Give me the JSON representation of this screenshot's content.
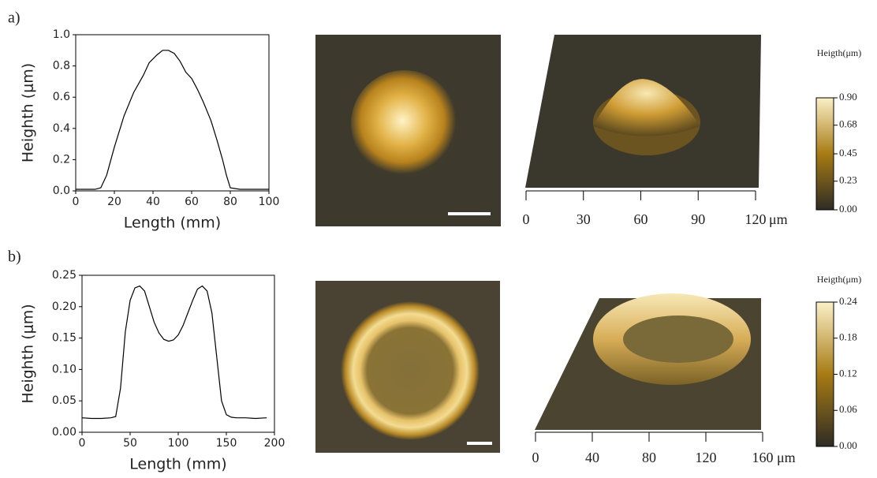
{
  "chart_data": [
    {
      "type": "line",
      "panel_label": "a)",
      "xlabel": "Length (mm)",
      "ylabel": "Heighth (μm)",
      "x": [
        0,
        5,
        10,
        13,
        16,
        20,
        25,
        30,
        35,
        38,
        42,
        45,
        48,
        51,
        54,
        57,
        60,
        63,
        66,
        70,
        73,
        76,
        78,
        80,
        85,
        90,
        95,
        100
      ],
      "series": [
        {
          "color": "#000000",
          "values": [
            0.01,
            0.01,
            0.01,
            0.02,
            0.1,
            0.28,
            0.48,
            0.63,
            0.74,
            0.82,
            0.87,
            0.9,
            0.9,
            0.88,
            0.83,
            0.76,
            0.72,
            0.65,
            0.57,
            0.45,
            0.33,
            0.2,
            0.1,
            0.02,
            0.01,
            0.01,
            0.01,
            0.01
          ]
        }
      ],
      "xlim": [
        0,
        100
      ],
      "xticks": [
        0,
        20,
        40,
        60,
        80,
        100
      ],
      "ylim": [
        0,
        1
      ],
      "yticks": [
        {
          "value": 0,
          "label": "0.0"
        },
        0.2,
        0.4,
        0.6,
        0.8,
        {
          "value": 1,
          "label": "1.0"
        }
      ]
    },
    {
      "type": "line",
      "panel_label": "b)",
      "xlabel": "Length (mm)",
      "ylabel": "Heighth (μm)",
      "x": [
        0,
        10,
        20,
        30,
        35,
        40,
        45,
        50,
        55,
        60,
        65,
        70,
        75,
        80,
        85,
        90,
        95,
        100,
        105,
        110,
        115,
        120,
        125,
        130,
        135,
        140,
        145,
        150,
        155,
        160,
        170,
        180,
        192
      ],
      "series": [
        {
          "color": "#000000",
          "values": [
            0.023,
            0.022,
            0.022,
            0.023,
            0.025,
            0.07,
            0.16,
            0.21,
            0.23,
            0.233,
            0.225,
            0.2,
            0.175,
            0.158,
            0.148,
            0.145,
            0.147,
            0.155,
            0.17,
            0.19,
            0.21,
            0.228,
            0.233,
            0.225,
            0.19,
            0.12,
            0.05,
            0.028,
            0.024,
            0.023,
            0.023,
            0.022,
            0.023
          ]
        }
      ],
      "xlim": [
        0,
        200
      ],
      "xticks": [
        0,
        50,
        100,
        150,
        200
      ],
      "ylim": [
        0,
        0.25
      ],
      "yticks": [
        {
          "value": 0,
          "label": "0.00"
        },
        0.05,
        {
          "value": 0.1,
          "label": "0.10"
        },
        0.15,
        {
          "value": 0.2,
          "label": "0.20"
        },
        0.25
      ]
    }
  ],
  "panels": [
    {
      "surface_ticks": [
        0,
        30,
        60,
        90,
        120
      ],
      "surface_unit": "μm",
      "colorbar": {
        "title": "Heigth(μm)",
        "lim": [
          0,
          0.9
        ],
        "ticks": [
          {
            "value": 0.9,
            "label": "0.90"
          },
          0.68,
          0.45,
          0.23,
          {
            "value": 0,
            "label": "0.00"
          }
        ]
      }
    },
    {
      "surface_ticks": [
        0,
        40,
        80,
        120,
        160
      ],
      "surface_unit": "μm",
      "colorbar": {
        "title": "Heigth(μm)",
        "lim": [
          0,
          0.24
        ],
        "ticks": [
          0.24,
          0.18,
          0.12,
          0.06,
          {
            "value": 0,
            "label": "0.00"
          }
        ]
      }
    }
  ]
}
